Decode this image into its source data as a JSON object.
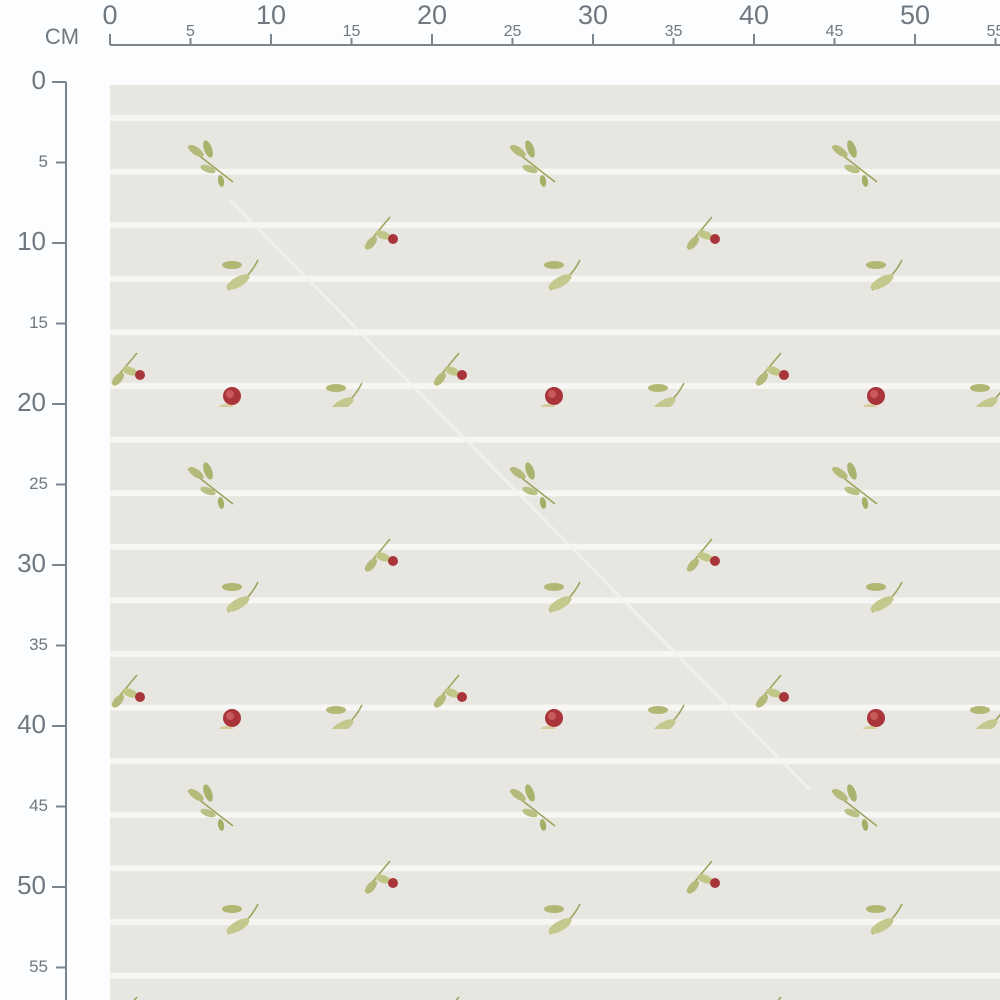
{
  "unit_label": "CM",
  "ruler_x": {
    "ticks": [
      0,
      5,
      10,
      15,
      20,
      25,
      30,
      35,
      40,
      45,
      50,
      55
    ]
  },
  "ruler_y": {
    "ticks": [
      0,
      5,
      10,
      15,
      20,
      25,
      30,
      35,
      40,
      45,
      50,
      55
    ]
  }
}
